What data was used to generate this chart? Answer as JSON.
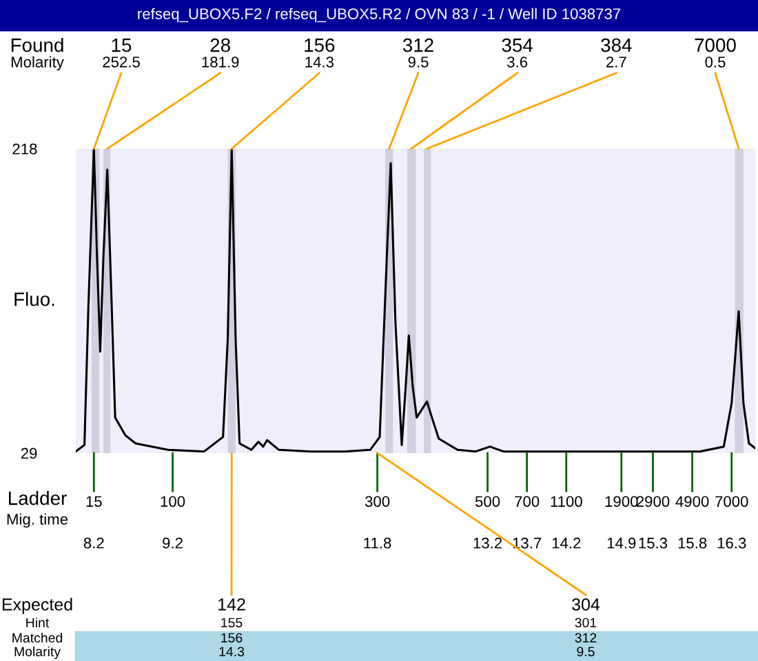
{
  "chart_data": {
    "type": "line",
    "title": "refseq_UBOX5.F2 / refseq_UBOX5.R2 / OVN 83 / -1 / Well ID 1038737",
    "ylabel": "Fluo.",
    "xlabel": "Mig. time",
    "xlim": [
      7.97,
      16.6
    ],
    "ylim": [
      29,
      218
    ],
    "yticks": [
      29,
      218
    ],
    "xticks": [
      8.2,
      9.2,
      11.8,
      13.2,
      13.7,
      14.2,
      14.9,
      15.3,
      15.8,
      16.3
    ],
    "grid": false,
    "marker": "none",
    "line_style": "solid",
    "series": [
      {
        "color": "#000000",
        "x": [
          7.97,
          8.08,
          8.13,
          8.2,
          8.24,
          8.28,
          8.32,
          8.37,
          8.42,
          8.47,
          8.6,
          8.73,
          9.14,
          9.6,
          9.84,
          9.9,
          9.95,
          10.0,
          10.05,
          10.2,
          10.29,
          10.35,
          10.4,
          10.55,
          10.95,
          11.4,
          11.71,
          11.83,
          11.92,
          11.97,
          12.03,
          12.11,
          12.16,
          12.2,
          12.25,
          12.3,
          12.43,
          12.5,
          12.58,
          12.82,
          13.05,
          13.23,
          13.4,
          13.8,
          14.5,
          15.2,
          15.9,
          16.2,
          16.3,
          16.39,
          16.45,
          16.52,
          16.6
        ],
        "values": [
          30,
          34,
          120,
          218,
          150,
          92,
          150,
          205,
          130,
          51,
          40,
          35,
          31,
          30,
          39,
          100,
          218,
          100,
          35,
          31,
          36,
          33,
          37,
          31,
          30,
          30,
          31,
          39,
          150,
          209,
          110,
          34,
          70,
          102,
          70,
          51,
          61,
          50,
          38,
          31,
          30,
          33,
          30,
          30,
          30,
          30,
          30,
          33,
          60,
          117,
          60,
          35,
          32
        ]
      }
    ],
    "bands": [
      {
        "axis": "x",
        "from": 8.17,
        "to": 8.27,
        "color": "#d0d0e0"
      },
      {
        "axis": "x",
        "from": 8.32,
        "to": 8.41,
        "color": "#d0d0e0"
      },
      {
        "axis": "x",
        "from": 9.9,
        "to": 10.0,
        "color": "#d0d0e0"
      },
      {
        "axis": "x",
        "from": 11.9,
        "to": 12.0,
        "color": "#d0d0e0"
      },
      {
        "axis": "x",
        "from": 12.18,
        "to": 12.29,
        "color": "#d0d0e0"
      },
      {
        "axis": "x",
        "from": 12.39,
        "to": 12.48,
        "color": "#d0d0e0"
      },
      {
        "axis": "x",
        "from": 16.34,
        "to": 16.45,
        "color": "#d0d0e0"
      }
    ],
    "annotations": [
      {
        "text": "15\n252.5",
        "x": 8.2,
        "y": 218
      },
      {
        "text": "28\n181.9",
        "x": 8.37,
        "y": 218
      },
      {
        "text": "156\n14.3",
        "x": 9.95,
        "y": 218
      },
      {
        "text": "312\n9.5",
        "x": 11.95,
        "y": 218
      },
      {
        "text": "354\n3.6",
        "x": 12.23,
        "y": 218
      },
      {
        "text": "384\n2.7",
        "x": 12.43,
        "y": 218
      },
      {
        "text": "7000\n0.5",
        "x": 16.39,
        "y": 218
      },
      {
        "text": "15",
        "x": 8.2,
        "y": 29
      },
      {
        "text": "100",
        "x": 9.2,
        "y": 29
      },
      {
        "text": "300",
        "x": 11.8,
        "y": 29
      },
      {
        "text": "500",
        "x": 13.2,
        "y": 29
      },
      {
        "text": "700",
        "x": 13.7,
        "y": 29
      },
      {
        "text": "1100",
        "x": 14.2,
        "y": 29
      },
      {
        "text": "1900",
        "x": 14.9,
        "y": 29
      },
      {
        "text": "2900",
        "x": 15.3,
        "y": 29
      },
      {
        "text": "4900",
        "x": 15.8,
        "y": 29
      },
      {
        "text": "7000",
        "x": 16.3,
        "y": 29
      },
      "Found",
      "Molarity",
      "Ladder",
      "Expected",
      "142",
      "304",
      "Hint",
      "155",
      "301",
      "Matched",
      "156",
      "312",
      "Molarity",
      "14.3",
      "9.5"
    ]
  }
}
